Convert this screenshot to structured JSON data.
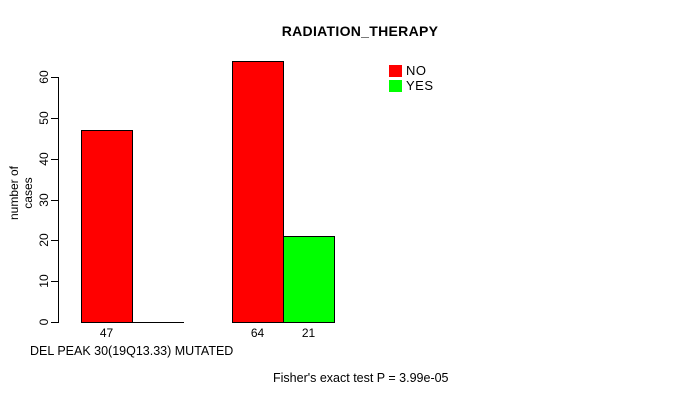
{
  "title": "RADIATION_THERAPY",
  "y_axis": {
    "label": "number of cases"
  },
  "x_axis": {
    "label": "DEL PEAK 30(19Q13.33) MUTATED"
  },
  "legend": {
    "position": "top-right",
    "items": [
      {
        "label": "NO",
        "color": "#FF0000"
      },
      {
        "label": "YES",
        "color": "#00FF00"
      }
    ]
  },
  "footer": {
    "stat_text": "Fisher's exact test P = 3.99e-05"
  },
  "chart_data": {
    "type": "bar",
    "grouped": true,
    "title": "RADIATION_THERAPY",
    "xlabel": "DEL PEAK 30(19Q13.33) MUTATED",
    "ylabel": "number of cases",
    "ylim": [
      0,
      60
    ],
    "yticks": [
      0,
      10,
      20,
      30,
      40,
      50,
      60
    ],
    "grid": false,
    "legend_position": "top-right",
    "categories": [
      "group-1",
      "group-2"
    ],
    "series": [
      {
        "name": "NO",
        "color": "#FF0000",
        "values": [
          47,
          64
        ]
      },
      {
        "name": "YES",
        "color": "#00FF00",
        "values": [
          0,
          21
        ]
      }
    ],
    "bar_value_labels": [
      [
        "47",
        ""
      ],
      [
        "64",
        "21"
      ]
    ],
    "annotation": "Fisher's exact test P = 3.99e-05"
  }
}
